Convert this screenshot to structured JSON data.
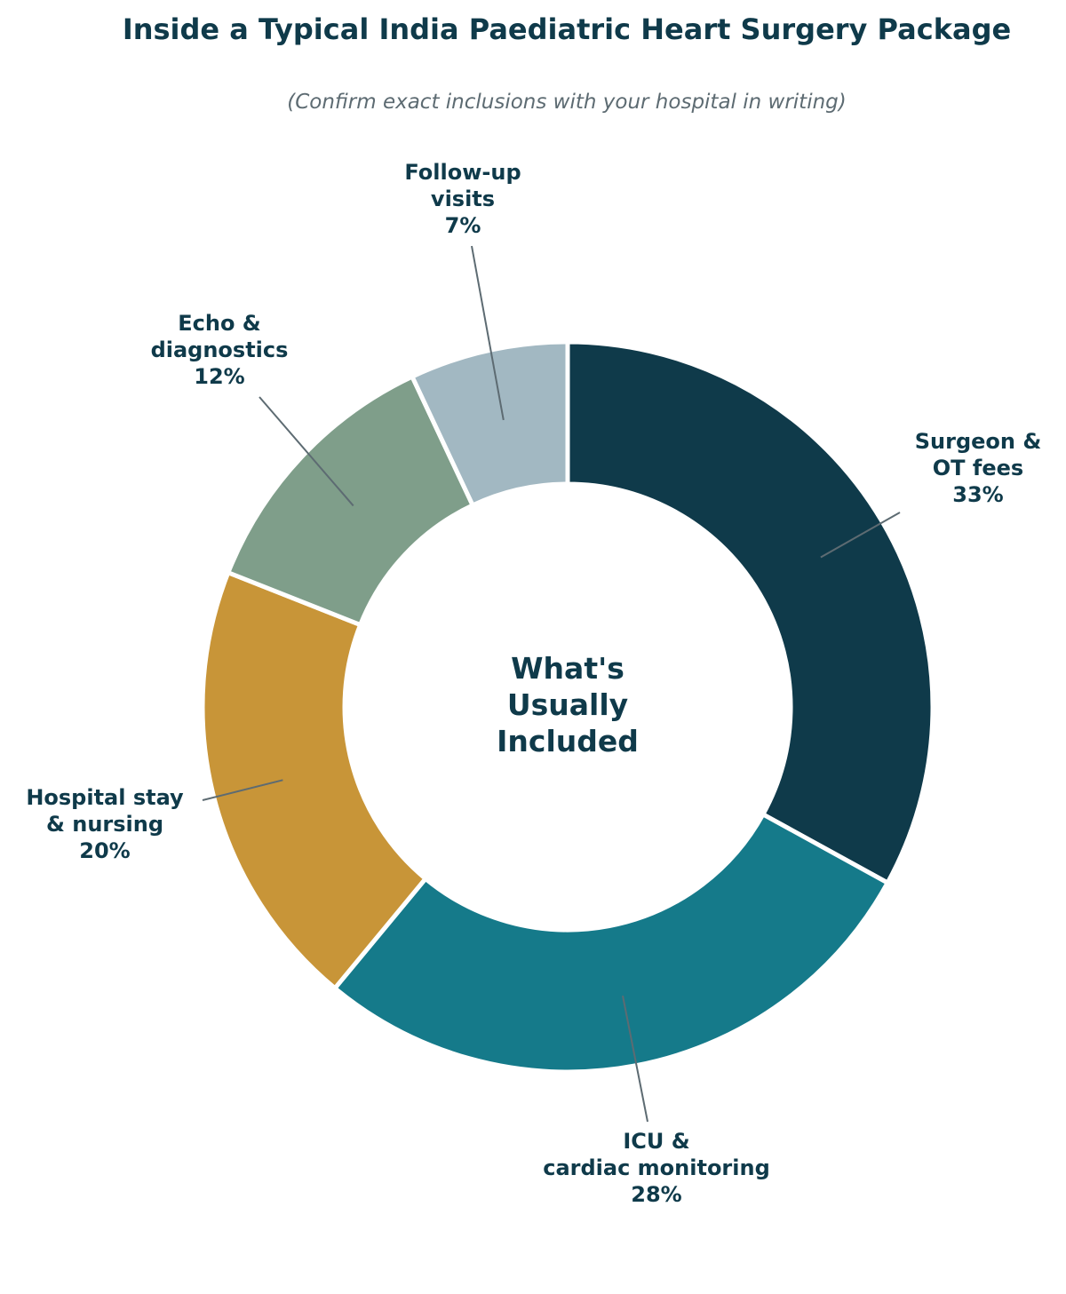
{
  "chart_data": {
    "type": "pie",
    "variant": "donut",
    "title": "Inside a Typical India Paediatric Heart Surgery Package",
    "subtitle": "(Confirm exact inclusions with your hospital in writing)",
    "center_label": [
      "What's",
      "Usually",
      "Included"
    ],
    "slices": [
      {
        "label": [
          "Surgeon &",
          "OT fees"
        ],
        "value": 33,
        "value_label": "33%",
        "color": "#0f3a4a"
      },
      {
        "label": [
          "ICU &",
          "cardiac monitoring"
        ],
        "value": 28,
        "value_label": "28%",
        "color": "#157a8a"
      },
      {
        "label": [
          "Hospital stay",
          "& nursing"
        ],
        "value": 20,
        "value_label": "20%",
        "color": "#c89538"
      },
      {
        "label": [
          "Echo &",
          "diagnostics"
        ],
        "value": 12,
        "value_label": "12%",
        "color": "#7f9e8a"
      },
      {
        "label": [
          "Follow-up",
          "visits"
        ],
        "value": 7,
        "value_label": "7%",
        "color": "#a2b8c2"
      }
    ],
    "start_angle": "12 o'clock",
    "direction": "clockwise",
    "legend": "none",
    "grid": false
  }
}
